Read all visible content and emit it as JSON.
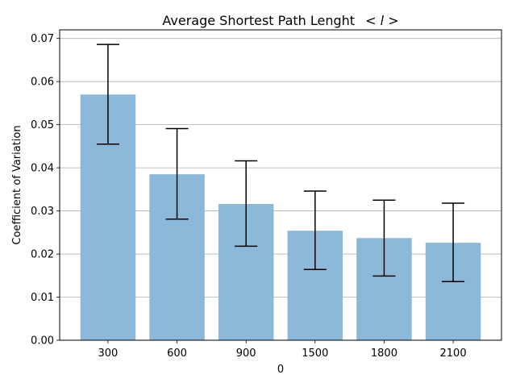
{
  "chart_data": {
    "type": "bar",
    "title": "Average Shortest Path Lenght",
    "title_math": "< l >",
    "xlabel": "0",
    "ylabel": "Coefficient of Variation",
    "categories": [
      "300",
      "600",
      "900",
      "1500",
      "1800",
      "2100"
    ],
    "values": [
      0.057,
      0.0385,
      0.0316,
      0.0254,
      0.0237,
      0.0226
    ],
    "error_low": [
      0.0455,
      0.0281,
      0.0218,
      0.0164,
      0.0149,
      0.0136
    ],
    "error_high": [
      0.0686,
      0.0491,
      0.0416,
      0.0346,
      0.0325,
      0.0318
    ],
    "ylim": [
      0,
      0.072
    ],
    "yticks": [
      "0.00",
      "0.01",
      "0.02",
      "0.03",
      "0.04",
      "0.05",
      "0.06",
      "0.07"
    ],
    "ytick_values": [
      0,
      0.01,
      0.02,
      0.03,
      0.04,
      0.05,
      0.06,
      0.07
    ],
    "grid": "y-major",
    "colors": {
      "bar": "#8cb9d9",
      "error": "#000000",
      "grid": "#b0b0b0",
      "axis": "#000000"
    }
  }
}
